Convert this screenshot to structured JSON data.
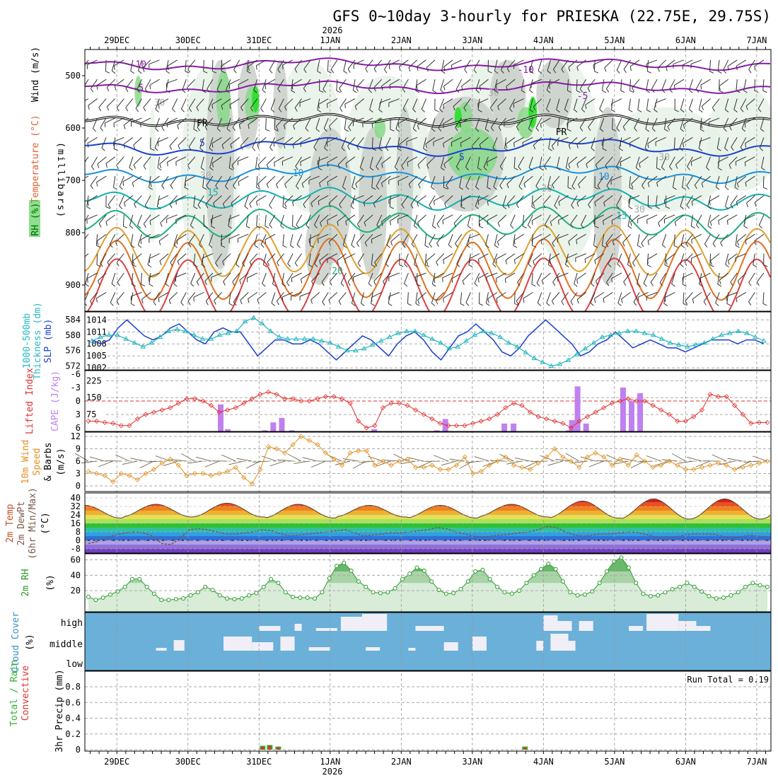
{
  "title": "GFS 0~10day 3-hourly for PRIESKA (22.75E, 29.75S)",
  "year_label": "2026",
  "run_total": "Run Total = 0.19",
  "colors": {
    "slp": "#1a3fcc",
    "thickness": "#25b8c0",
    "lifted_index": "#e03030",
    "cape": "#c080f0",
    "wind_speed": "#e09020",
    "barb": "#6a5a3a",
    "rh": "#2a9a2a",
    "cloud": "#6ab0d8",
    "cloud_fill": "#f0eef6",
    "precip_total": "#30b030",
    "precip_conv": "#e03030"
  },
  "chart_data": {
    "type": "meteogram",
    "x_dates": [
      "29DEC",
      "30DEC",
      "31DEC",
      "1JAN",
      "2JAN",
      "3JAN",
      "4JAN",
      "5JAN",
      "6JAN",
      "7JAN"
    ],
    "x_range_days": [
      -0.45,
      9.2
    ],
    "panels": [
      {
        "id": "upper_air",
        "labels": [
          "Wind (m/s)",
          "Temperature (°C)",
          "RH (%)"
        ],
        "ylabel": "(millibars)",
        "yticks": [
          "500",
          "600",
          "700",
          "800",
          "900"
        ],
        "yrange": [
          450,
          950
        ],
        "freezing_label": "FR",
        "contour_labels": [
          {
            "text": "-10",
            "t": 0.3,
            "p": 478,
            "color": "#8a1aaa"
          },
          {
            "text": "-5",
            "t": 0.3,
            "p": 522,
            "color": "#8a1aaa"
          },
          {
            "text": "-10",
            "t": 5.75,
            "p": 488,
            "color": "#8a1aaa"
          },
          {
            "text": "-5",
            "t": 6.55,
            "p": 538,
            "color": "#8a1aaa"
          },
          {
            "text": "FR",
            "t": 1.2,
            "p": 590,
            "color": "#000000"
          },
          {
            "text": "FR",
            "t": 6.25,
            "p": 607,
            "color": "#000000"
          },
          {
            "text": "5",
            "t": 1.2,
            "p": 628,
            "color": "#1a3fcc"
          },
          {
            "text": "5",
            "t": 4.85,
            "p": 655,
            "color": "#1a3fcc"
          },
          {
            "text": "10",
            "t": 2.55,
            "p": 685,
            "color": "#1a90dd"
          },
          {
            "text": "10",
            "t": 6.85,
            "p": 692,
            "color": "#1a90dd"
          },
          {
            "text": "15",
            "t": 1.35,
            "p": 722,
            "color": "#15b0b0"
          },
          {
            "text": "15",
            "t": 7.1,
            "p": 767,
            "color": "#15b0b0"
          },
          {
            "text": "20",
            "t": 3.1,
            "p": 872,
            "color": "#20b080"
          },
          {
            "text": "30",
            "t": 0.6,
            "p": 551,
            "color": "#aaaaaa"
          },
          {
            "text": "30",
            "t": 5.3,
            "p": 532,
            "color": "#aaaaaa"
          },
          {
            "text": "30",
            "t": 1.25,
            "p": 690,
            "color": "#aaaaaa"
          },
          {
            "text": "30",
            "t": 7.7,
            "p": 655,
            "color": "#aaaaaa"
          },
          {
            "text": "30",
            "t": 6.05,
            "p": 715,
            "color": "#aaaaaa"
          },
          {
            "text": "30",
            "t": 7.35,
            "p": 755,
            "color": "#aaaaaa"
          }
        ]
      },
      {
        "id": "slp_thickness",
        "labels": [
          "1000-500mb",
          "Thickness (dm)",
          "SLP (mb)"
        ],
        "yticks_left": [
          "584",
          "580",
          "576",
          "572"
        ],
        "yticks_right": [
          "1014",
          "1011",
          "1008",
          "1005",
          "1002"
        ],
        "slp_mb": [
          1009,
          1008,
          1009,
          1012,
          1014,
          1012,
          1010,
          1009,
          1010,
          1012,
          1013,
          1011,
          1009,
          1008,
          1011,
          1012,
          1011,
          1011,
          1008,
          1005,
          1007,
          1009,
          1009,
          1008,
          1008,
          1009,
          1008,
          1006,
          1004,
          1006,
          1008,
          1010,
          1009,
          1007,
          1005,
          1008,
          1010,
          1011,
          1009,
          1006,
          1004,
          1007,
          1010,
          1011,
          1013,
          1011,
          1009,
          1006,
          1005,
          1007,
          1010,
          1012,
          1014,
          1012,
          1010,
          1008,
          1005,
          1006,
          1008,
          1009,
          1011,
          1009,
          1007,
          1008,
          1009,
          1008,
          1007,
          1007,
          1006,
          1007,
          1008,
          1009,
          1009,
          1009,
          1008,
          1009,
          1009,
          1008
        ],
        "thickness_dm": [
          578.5,
          579.5,
          580,
          580,
          579,
          578,
          577,
          578,
          579.5,
          581,
          581.5,
          581,
          580,
          579,
          579,
          580,
          580.5,
          581,
          583.5,
          584.5,
          583,
          581,
          579.5,
          579,
          579,
          579,
          579,
          578.5,
          578,
          577,
          576,
          576,
          576.5,
          577.5,
          578.5,
          579.5,
          580.5,
          581,
          581,
          580,
          579,
          578,
          576.5,
          577,
          578.5,
          580,
          581,
          580.5,
          579.5,
          578,
          577,
          575.5,
          574,
          573,
          572,
          572.5,
          573.5,
          575,
          576.5,
          578,
          579.5,
          580,
          580.5,
          581,
          581,
          580.5,
          580,
          579,
          578,
          577.5,
          577,
          577.5,
          578,
          579,
          580,
          580.5,
          581,
          580.5,
          579.5,
          578.5
        ]
      },
      {
        "id": "li_cape",
        "labels": [
          "Lifted Index",
          "CAPE (J/kg)"
        ],
        "yticks_left": [
          "-6",
          "-3",
          "0",
          "3",
          "6"
        ],
        "yticks_right": [
          "225",
          "150",
          "75"
        ],
        "lifted_index": [
          4.5,
          4.5,
          4.8,
          5,
          5.5,
          5.5,
          4,
          3,
          2.5,
          2,
          1.5,
          0.5,
          -0.5,
          -0.5,
          0,
          1,
          2.5,
          2,
          1.5,
          0.5,
          -0.5,
          -1.5,
          -2,
          -1.5,
          -0.5,
          -0.5,
          0,
          0,
          -0.5,
          -1,
          -1,
          -0.5,
          0.5,
          4.5,
          6,
          5.5,
          1.5,
          0.5,
          0.5,
          1,
          2,
          3,
          4,
          5,
          5.5,
          5.5,
          5.5,
          5,
          4.5,
          4,
          3,
          1.5,
          0.5,
          1,
          2.5,
          3.5,
          4,
          4.5,
          5,
          6,
          4.5,
          3.5,
          2.5,
          1.5,
          0.5,
          0,
          -0.5,
          0,
          0,
          1,
          2,
          3,
          4.5,
          4.5,
          3.5,
          2,
          -1.5,
          -1,
          -1,
          1,
          3,
          5,
          4.8,
          4.8
        ],
        "cape": [
          0,
          0,
          0,
          0,
          0,
          0,
          0,
          0,
          0,
          0,
          0,
          0,
          0,
          0,
          0,
          0,
          0,
          0,
          0,
          0,
          0,
          0,
          0,
          0,
          0,
          0,
          0,
          0,
          0,
          0,
          0,
          0,
          0,
          0,
          0,
          0,
          0,
          0,
          0,
          0,
          0,
          0,
          0,
          0,
          0,
          0,
          0,
          0,
          0,
          0,
          0,
          0,
          0,
          0,
          0,
          0,
          0,
          0,
          0,
          0,
          0,
          0,
          0,
          0,
          0,
          0,
          0,
          0,
          0,
          0,
          0,
          0,
          0,
          0,
          0,
          0,
          0,
          0,
          0,
          0,
          0,
          0,
          0,
          0
        ],
        "cape_bars": [
          {
            "t": 1.46,
            "v": 120
          },
          {
            "t": 1.56,
            "v": 10
          },
          {
            "t": 2.08,
            "v": 5
          },
          {
            "t": 2.2,
            "v": 40
          },
          {
            "t": 2.32,
            "v": 60
          },
          {
            "t": 2.46,
            "v": 5
          },
          {
            "t": 3.62,
            "v": 10
          },
          {
            "t": 4.5,
            "v": 5
          },
          {
            "t": 4.62,
            "v": 55
          },
          {
            "t": 5.45,
            "v": 35
          },
          {
            "t": 5.58,
            "v": 35
          },
          {
            "t": 6.36,
            "v": 5
          },
          {
            "t": 6.4,
            "v": 50
          },
          {
            "t": 6.48,
            "v": 200
          },
          {
            "t": 6.6,
            "v": 35
          },
          {
            "t": 7.12,
            "v": 195
          },
          {
            "t": 7.24,
            "v": 135
          },
          {
            "t": 7.36,
            "v": 170
          }
        ]
      },
      {
        "id": "wind10m",
        "labels": [
          "10m Wind",
          "Speed",
          "& Barbs"
        ],
        "ylabel": "(m/s)",
        "yticks": [
          "12",
          "9",
          "6",
          "3",
          "0"
        ],
        "speed": [
          3.5,
          3,
          2.5,
          1,
          3,
          2.5,
          1.5,
          3,
          4,
          5.5,
          6.5,
          5,
          2.5,
          3,
          3,
          2.5,
          3,
          3.5,
          4.5,
          2,
          0.5,
          4,
          9.5,
          9,
          8,
          10,
          12,
          11,
          10,
          8,
          6.5,
          5,
          8,
          8.5,
          8.5,
          5,
          6,
          5,
          6,
          6.5,
          4.5,
          4.5,
          5,
          4,
          4,
          5,
          7,
          3,
          3.5,
          5,
          6,
          7,
          5,
          4.5,
          4,
          5.5,
          7,
          9,
          7,
          6,
          4.5,
          7,
          8,
          7,
          5,
          6.5,
          5,
          7.5,
          6,
          4.5,
          5,
          6,
          5,
          4,
          4,
          4.5,
          5,
          5.5,
          5,
          4,
          4.5,
          5,
          5.5,
          6
        ]
      },
      {
        "id": "temp2m",
        "labels": [
          "2m Temp",
          "2m DewPt",
          "(6hr Min/Max)"
        ],
        "ylabel": "(°C)",
        "yticks": [
          "40",
          "32",
          "24",
          "16",
          "8",
          "0",
          "-8"
        ],
        "temp_max": [
          33,
          34,
          35,
          34,
          33,
          33,
          34,
          37,
          39
        ],
        "temp_min": [
          21,
          22,
          22,
          21,
          22,
          21,
          22,
          21,
          20
        ],
        "dewpt": [
          -3,
          -1,
          3,
          5,
          7,
          8,
          7,
          4,
          -3,
          -4,
          2,
          10,
          11,
          10,
          8,
          6,
          6,
          7,
          8,
          10,
          9,
          6,
          4,
          5,
          6,
          7,
          8,
          9,
          10,
          7,
          4,
          5,
          6,
          7,
          7,
          8,
          9,
          10,
          12,
          11,
          8,
          6,
          4,
          3,
          4,
          5,
          6,
          7,
          8,
          10,
          13,
          12,
          8,
          5,
          4,
          5,
          6,
          6,
          7,
          8,
          7,
          5,
          3,
          2,
          3,
          5,
          6,
          6,
          6,
          4,
          2,
          3,
          5,
          4,
          3
        ]
      },
      {
        "id": "rh2m",
        "labels": [
          "2m RH"
        ],
        "ylabel": "(%)",
        "yticks": [
          "60",
          "40",
          "20"
        ],
        "rh": [
          12,
          8,
          11,
          15,
          19,
          25,
          35,
          35,
          25,
          16,
          8,
          8,
          9,
          10,
          14,
          18,
          25,
          21,
          14,
          10,
          9,
          10,
          14,
          17,
          25,
          35,
          30,
          18,
          12,
          11,
          11,
          10,
          18,
          36,
          52,
          56,
          46,
          32,
          25,
          18,
          17,
          18,
          23,
          35,
          42,
          50,
          46,
          32,
          21,
          16,
          17,
          22,
          32,
          45,
          47,
          35,
          25,
          18,
          16,
          20,
          30,
          40,
          48,
          55,
          48,
          32,
          18,
          14,
          15,
          19,
          30,
          45,
          58,
          63,
          50,
          30,
          16,
          13,
          14,
          18,
          22,
          25,
          30,
          25,
          19,
          13,
          10,
          11,
          14,
          18,
          25,
          30,
          27,
          25
        ]
      },
      {
        "id": "cloud",
        "labels": [
          "Cloud Cover"
        ],
        "ylabel": "(%)",
        "levels": [
          "high",
          "middle",
          "low"
        ]
      },
      {
        "id": "precip",
        "labels": [
          "Total / Rain",
          "Convective"
        ],
        "ylabel": "3hr Precip (mm)",
        "yticks": [
          "0.8",
          "0.6",
          "0.4",
          "0.2",
          "0"
        ],
        "bars": [
          {
            "t": 2.05,
            "total": 0.05,
            "conv": 0.04
          },
          {
            "t": 2.15,
            "total": 0.06,
            "conv": 0.05
          },
          {
            "t": 2.27,
            "total": 0.04,
            "conv": 0.03
          },
          {
            "t": 5.74,
            "total": 0.04,
            "conv": 0.03
          }
        ]
      }
    ]
  }
}
